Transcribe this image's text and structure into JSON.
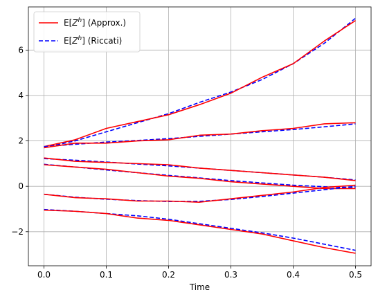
{
  "chart_data": {
    "type": "line",
    "xlabel": "Time",
    "ylabel": "",
    "xlim": [
      -0.025,
      0.525
    ],
    "ylim": [
      -3.5,
      7.9
    ],
    "xticks": [
      0.0,
      0.1,
      0.2,
      0.3,
      0.4,
      0.5
    ],
    "xtick_labels": [
      "0.0",
      "0.1",
      "0.2",
      "0.3",
      "0.4",
      "0.5"
    ],
    "yticks": [
      -2,
      0,
      2,
      4,
      6
    ],
    "ytick_labels": [
      "−2",
      "0",
      "2",
      "4",
      "6"
    ],
    "grid": true,
    "legend_position": "top-left",
    "legend": [
      {
        "label": "E[Z^h] (Approx.)",
        "prefix": "E[",
        "var": "Z",
        "sup": "h",
        "suffix": "] (Approx.)",
        "color": "#ff0000",
        "style": "solid"
      },
      {
        "label": "E[Z^h] (Riccati)",
        "prefix": "E[",
        "var": "Z",
        "sup": "h",
        "suffix": "] (Riccati)",
        "color": "#0000ff",
        "style": "dashed"
      }
    ],
    "x": [
      0.0,
      0.05,
      0.1,
      0.15,
      0.2,
      0.25,
      0.3,
      0.35,
      0.4,
      0.45,
      0.5
    ],
    "series": [
      {
        "kind": "riccati",
        "color": "#0000ff",
        "values": [
          1.7,
          2.0,
          2.4,
          2.8,
          3.2,
          3.7,
          4.15,
          4.7,
          5.4,
          6.3,
          7.4
        ]
      },
      {
        "kind": "approx",
        "color": "#ff0000",
        "values": [
          1.75,
          2.05,
          2.55,
          2.85,
          3.15,
          3.6,
          4.1,
          4.8,
          5.4,
          6.4,
          7.3
        ]
      },
      {
        "kind": "riccati",
        "color": "#0000ff",
        "values": [
          1.75,
          1.85,
          1.95,
          2.02,
          2.1,
          2.2,
          2.3,
          2.4,
          2.5,
          2.62,
          2.75
        ]
      },
      {
        "kind": "approx",
        "color": "#ff0000",
        "values": [
          1.7,
          1.9,
          1.9,
          2.0,
          2.05,
          2.25,
          2.3,
          2.45,
          2.55,
          2.75,
          2.8
        ]
      },
      {
        "kind": "riccati",
        "color": "#0000ff",
        "values": [
          1.22,
          1.15,
          1.07,
          0.98,
          0.9,
          0.8,
          0.7,
          0.6,
          0.5,
          0.4,
          0.28
        ]
      },
      {
        "kind": "approx",
        "color": "#ff0000",
        "values": [
          1.25,
          1.1,
          1.05,
          1.0,
          0.95,
          0.8,
          0.7,
          0.6,
          0.5,
          0.4,
          0.25
        ]
      },
      {
        "kind": "riccati",
        "color": "#0000ff",
        "values": [
          0.97,
          0.85,
          0.72,
          0.6,
          0.48,
          0.37,
          0.25,
          0.15,
          0.05,
          -0.02,
          -0.05
        ]
      },
      {
        "kind": "approx",
        "color": "#ff0000",
        "values": [
          0.95,
          0.85,
          0.75,
          0.6,
          0.45,
          0.35,
          0.2,
          0.1,
          0.0,
          -0.1,
          -0.1
        ]
      },
      {
        "kind": "riccati",
        "color": "#0000ff",
        "values": [
          -0.35,
          -0.48,
          -0.57,
          -0.63,
          -0.67,
          -0.66,
          -0.58,
          -0.45,
          -0.3,
          -0.15,
          0.0
        ]
      },
      {
        "kind": "approx",
        "color": "#ff0000",
        "values": [
          -0.35,
          -0.5,
          -0.55,
          -0.65,
          -0.65,
          -0.7,
          -0.55,
          -0.4,
          -0.25,
          -0.05,
          0.05
        ]
      },
      {
        "kind": "riccati",
        "color": "#0000ff",
        "values": [
          -1.02,
          -1.1,
          -1.2,
          -1.3,
          -1.45,
          -1.65,
          -1.85,
          -2.05,
          -2.28,
          -2.55,
          -2.82
        ]
      },
      {
        "kind": "approx",
        "color": "#ff0000",
        "values": [
          -1.05,
          -1.1,
          -1.2,
          -1.4,
          -1.5,
          -1.7,
          -1.9,
          -2.1,
          -2.4,
          -2.7,
          -2.95
        ]
      }
    ]
  }
}
